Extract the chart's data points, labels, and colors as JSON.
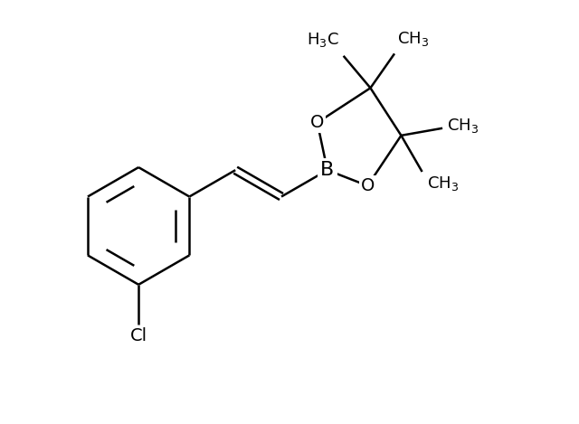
{
  "bg_color": "#ffffff",
  "line_color": "#000000",
  "line_width": 1.8,
  "font_size": 13,
  "font_family": "Arial",
  "figsize": [
    6.4,
    4.69
  ],
  "dpi": 100,
  "xlim": [
    0.0,
    10.0
  ],
  "ylim": [
    0.0,
    7.5
  ]
}
